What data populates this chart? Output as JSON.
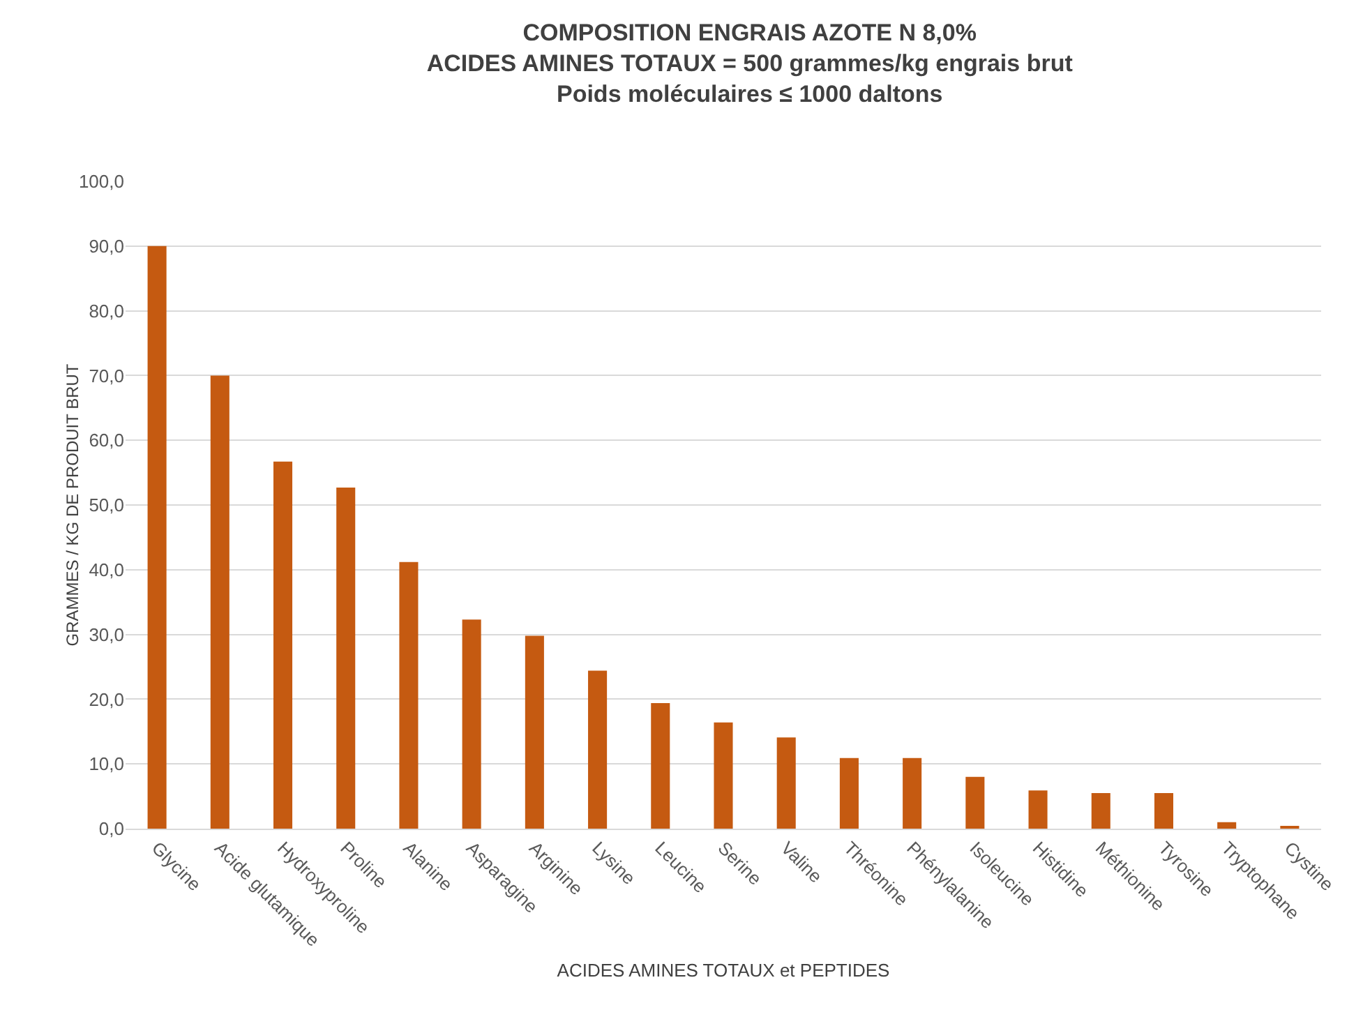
{
  "chart_data": {
    "type": "bar",
    "title": "COMPOSITION ENGRAIS AZOTE N 8,0%\nACIDES AMINES TOTAUX = 500 grammes/kg engrais brut\nPoids moléculaires ≤ 1000 daltons",
    "xlabel": "ACIDES AMINES TOTAUX et PEPTIDES",
    "ylabel": "GRAMMES / KG DE PRODUIT BRUT",
    "categories": [
      "Glycine",
      "Acide glutamique",
      "Hydroxyproline",
      "Proline",
      "Alanine",
      "Asparagine",
      "Arginine",
      "Lysine",
      "Leucine",
      "Serine",
      "Valine",
      "Thréonine",
      "Phénylalanine",
      "Isoleucine",
      "Histidine",
      "Méthionine",
      "Tyrosine",
      "Tryptophane",
      "Cystine"
    ],
    "values": [
      90,
      70,
      56.7,
      52.7,
      41.2,
      32.3,
      29.8,
      24.4,
      19.4,
      16.4,
      14.1,
      10.9,
      10.9,
      8,
      5.9,
      5.5,
      5.5,
      1,
      0.4
    ],
    "color": "#c55a11",
    "ylim": [
      0,
      100
    ],
    "yticks": [
      {
        "value": 0,
        "label": "0,0"
      },
      {
        "value": 10,
        "label": "10,0"
      },
      {
        "value": 20,
        "label": "20,0"
      },
      {
        "value": 30,
        "label": "30,0"
      },
      {
        "value": 40,
        "label": "40,0"
      },
      {
        "value": 50,
        "label": "50,0"
      },
      {
        "value": 60,
        "label": "60,0"
      },
      {
        "value": 70,
        "label": "70,0"
      },
      {
        "value": 80,
        "label": "80,0"
      },
      {
        "value": 90,
        "label": "90,0"
      },
      {
        "value": 100,
        "label": "100,0"
      }
    ],
    "grid": "y",
    "legend": false
  }
}
